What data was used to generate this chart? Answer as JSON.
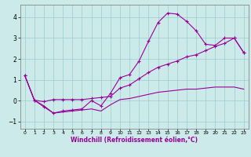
{
  "xlabel": "Windchill (Refroidissement éolien,°C)",
  "bg_color": "#cceaea",
  "line_color": "#990099",
  "grid_color": "#99cccc",
  "hours": [
    0,
    1,
    2,
    3,
    4,
    5,
    6,
    7,
    8,
    9,
    10,
    11,
    12,
    13,
    14,
    15,
    16,
    17,
    18,
    19,
    20,
    21,
    22,
    23
  ],
  "line1": [
    1.2,
    0.02,
    -0.3,
    -0.6,
    -0.5,
    -0.45,
    -0.4,
    0.0,
    -0.25,
    0.35,
    1.1,
    1.25,
    1.9,
    2.85,
    3.75,
    4.2,
    4.15,
    3.8,
    3.35,
    2.7,
    2.65,
    3.0,
    3.0,
    2.3
  ],
  "line2": [
    1.2,
    0.02,
    -0.05,
    0.05,
    0.05,
    0.05,
    0.05,
    0.1,
    0.15,
    0.2,
    0.6,
    0.75,
    1.05,
    1.35,
    1.6,
    1.75,
    1.9,
    2.1,
    2.2,
    2.4,
    2.6,
    2.75,
    3.0,
    2.3
  ],
  "line3": [
    1.2,
    0.02,
    -0.25,
    -0.6,
    -0.55,
    -0.5,
    -0.45,
    -0.4,
    -0.5,
    -0.2,
    0.05,
    0.1,
    0.2,
    0.3,
    0.4,
    0.45,
    0.5,
    0.55,
    0.55,
    0.6,
    0.65,
    0.65,
    0.65,
    0.55
  ],
  "xlim": [
    -0.5,
    23.5
  ],
  "ylim": [
    -1.35,
    4.6
  ],
  "yticks": [
    -1,
    0,
    1,
    2,
    3,
    4
  ],
  "xticks": [
    0,
    1,
    2,
    3,
    4,
    5,
    6,
    7,
    8,
    9,
    10,
    11,
    12,
    13,
    14,
    15,
    16,
    17,
    18,
    19,
    20,
    21,
    22,
    23
  ]
}
